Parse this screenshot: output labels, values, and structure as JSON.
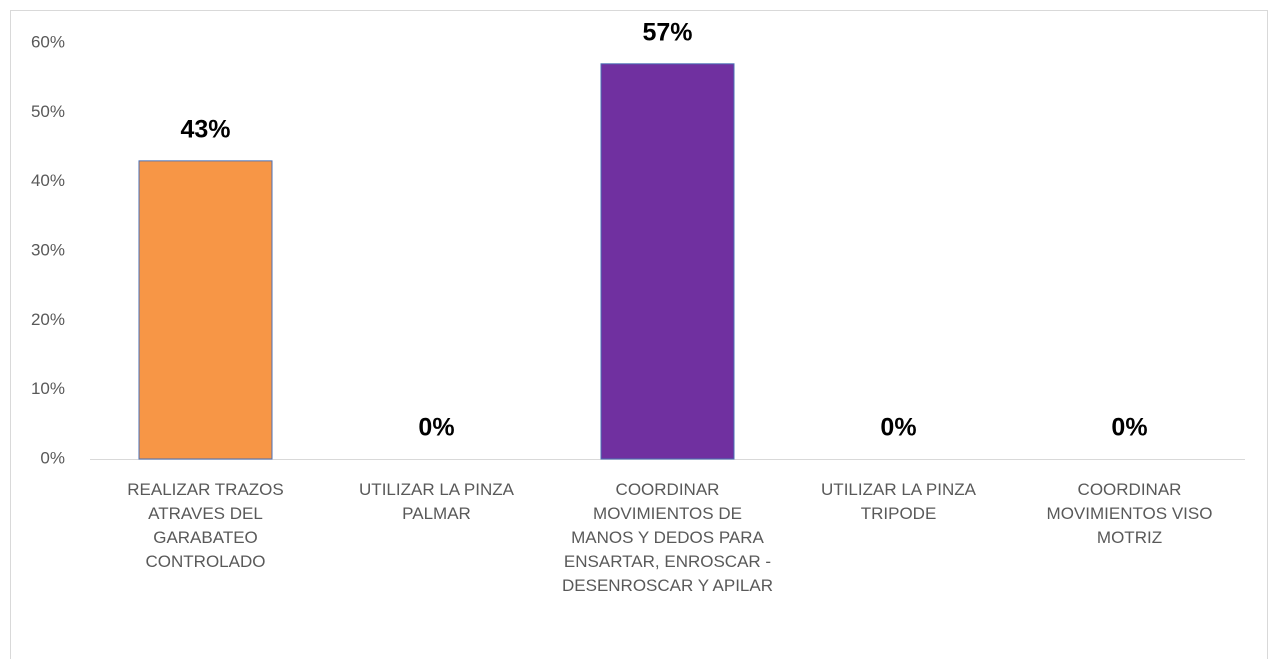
{
  "chart_data": {
    "type": "bar",
    "categories": [
      "REALIZAR TRAZOS ATRAVES DEL GARABATEO CONTROLADO",
      "UTILIZAR LA PINZA PALMAR",
      "COORDINAR MOVIMIENTOS DE MANOS Y DEDOS PARA ENSARTAR, ENROSCAR - DESENROSCAR Y APILAR",
      "UTILIZAR LA PINZA TRIPODE",
      "COORDINAR MOVIMIENTOS VISO MOTRIZ"
    ],
    "values": [
      43,
      0,
      57,
      0,
      0
    ],
    "value_labels": [
      "43%",
      "0%",
      "57%",
      "0%",
      "0%"
    ],
    "colors": [
      "#f79646",
      "#f79646",
      "#7030a0",
      "#7030a0",
      "#7030a0"
    ],
    "ylim": [
      0,
      60
    ],
    "yticks": [
      {
        "value": 0,
        "label": "0%"
      },
      {
        "value": 10,
        "label": "10%"
      },
      {
        "value": 20,
        "label": "20%"
      },
      {
        "value": 30,
        "label": "30%"
      },
      {
        "value": 40,
        "label": "40%"
      },
      {
        "value": 50,
        "label": "50%"
      },
      {
        "value": 60,
        "label": "60%"
      }
    ],
    "grid": false
  }
}
